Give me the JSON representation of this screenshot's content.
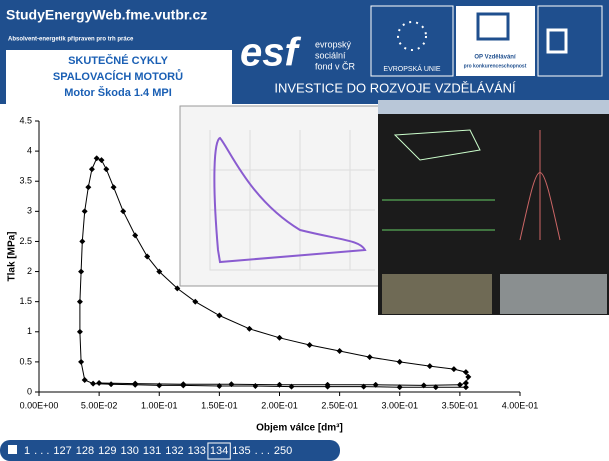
{
  "header": {
    "site": "StudyEnergyWeb.fme.vutbr.cz",
    "slogan": "Absolvent-energetik připraven pro trh práce",
    "title_lines": [
      "SKUTEČNÉ CYKLY",
      "SPALOVACÍCH MOTORŮ",
      "Motor Škoda 1.4 MPI"
    ],
    "esf_logo": "esf",
    "esf_text": [
      "evropský",
      "sociální",
      "fond v ČR"
    ],
    "eu_text": "EVROPSKÁ UNIE",
    "op_text": [
      "OP Vzdělávání",
      "pro konkurenceschopnost"
    ],
    "banner": "INVESTICE DO ROZVOJE VZDĚLÁVÁNÍ"
  },
  "chart_data": {
    "type": "line",
    "color": "#000000",
    "marker": "diamond",
    "xlabel": "Objem válce  [dm³]",
    "ylabel": "Tlak  [MPa]",
    "x": [
      0.355,
      0.33,
      0.3,
      0.27,
      0.24,
      0.21,
      0.18,
      0.15,
      0.12,
      0.1,
      0.08,
      0.06,
      0.045,
      0.038,
      0.035,
      0.034,
      0.034,
      0.035,
      0.036,
      0.038,
      0.041,
      0.044,
      0.048,
      0.052,
      0.056,
      0.062,
      0.07,
      0.08,
      0.09,
      0.1,
      0.115,
      0.13,
      0.15,
      0.175,
      0.2,
      0.225,
      0.25,
      0.275,
      0.3,
      0.325,
      0.345,
      0.355,
      0.357,
      0.355,
      0.35,
      0.32,
      0.28,
      0.24,
      0.2,
      0.16,
      0.12,
      0.08,
      0.05
    ],
    "values": [
      0.08,
      0.08,
      0.08,
      0.09,
      0.09,
      0.09,
      0.1,
      0.1,
      0.11,
      0.11,
      0.12,
      0.13,
      0.14,
      0.2,
      0.5,
      1.0,
      1.5,
      2.0,
      2.5,
      3.0,
      3.4,
      3.7,
      3.88,
      3.85,
      3.7,
      3.4,
      3.0,
      2.6,
      2.25,
      2.0,
      1.72,
      1.5,
      1.27,
      1.05,
      0.9,
      0.78,
      0.68,
      0.58,
      0.5,
      0.43,
      0.38,
      0.33,
      0.25,
      0.15,
      0.12,
      0.11,
      0.12,
      0.12,
      0.12,
      0.13,
      0.13,
      0.14,
      0.15
    ],
    "xlim": [
      0,
      0.4
    ],
    "ylim": [
      0,
      4.5
    ],
    "xticks": [
      {
        "value": 0,
        "label": "0.00E+00"
      },
      {
        "value": 0.05,
        "label": "5.00E-02"
      },
      {
        "value": 0.1,
        "label": "1.00E-01"
      },
      {
        "value": 0.15,
        "label": "1.50E-01"
      },
      {
        "value": 0.2,
        "label": "2.00E-01"
      },
      {
        "value": 0.25,
        "label": "2.50E-01"
      },
      {
        "value": 0.3,
        "label": "3.00E-01"
      },
      {
        "value": 0.35,
        "label": "3.50E-01"
      },
      {
        "value": 0.4,
        "label": "4.00E-01"
      }
    ],
    "yticks": [
      0,
      0.5,
      1,
      1.5,
      2,
      2.5,
      3,
      3.5,
      4,
      4.5
    ],
    "grid": false
  },
  "nav": {
    "items": [
      "1",
      ". . .",
      "127",
      "128",
      "129",
      "130",
      "131",
      "132",
      "133",
      "134",
      "135",
      ". . .",
      "250"
    ],
    "current": "134"
  }
}
